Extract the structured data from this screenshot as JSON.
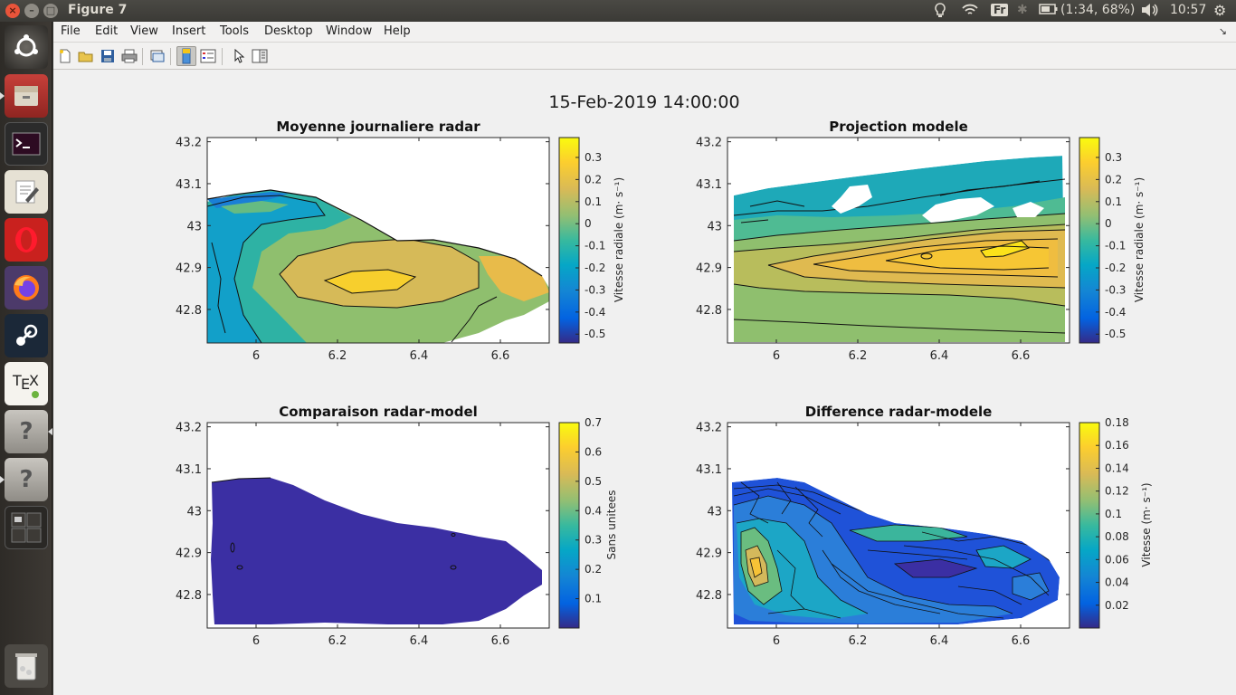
{
  "window": {
    "title": "Figure 7",
    "close": "×",
    "minimize": "–",
    "maximize": "□"
  },
  "indicators": {
    "language": "Fr",
    "battery": "(1:34, 68%)",
    "time": "10:57"
  },
  "menu": [
    "File",
    "Edit",
    "View",
    "Insert",
    "Tools",
    "Desktop",
    "Window",
    "Help"
  ],
  "figure_title": "15-Feb-2019 14:00:00",
  "chart_data": [
    {
      "type": "heatmap",
      "title": "Moyenne journaliere radar",
      "xticks": [
        "6",
        "6.2",
        "6.4",
        "6.6"
      ],
      "yticks": [
        "43.2",
        "43.1",
        "43",
        "42.9",
        "42.8"
      ],
      "xlim": [
        5.88,
        6.72
      ],
      "ylim": [
        42.72,
        43.21
      ],
      "colorbar": {
        "label": "Vitesse radiale (m· s⁻¹)",
        "ticks": [
          "0.3",
          "0.2",
          "0.1",
          "0",
          "-0.1",
          "-0.2",
          "-0.3",
          "-0.4",
          "-0.5"
        ],
        "range": [
          -0.54,
          0.39
        ]
      },
      "colormap": "parula"
    },
    {
      "type": "heatmap",
      "title": "Projection modele",
      "xticks": [
        "6",
        "6.2",
        "6.4",
        "6.6"
      ],
      "yticks": [
        "43.2",
        "43.1",
        "43",
        "42.9",
        "42.8"
      ],
      "xlim": [
        5.88,
        6.72
      ],
      "ylim": [
        42.72,
        43.21
      ],
      "colorbar": {
        "label": "Vitesse radiale (m· s⁻¹)",
        "ticks": [
          "0.3",
          "0.2",
          "0.1",
          "0",
          "-0.1",
          "-0.2",
          "-0.3",
          "-0.4",
          "-0.5"
        ],
        "range": [
          -0.54,
          0.39
        ]
      },
      "colormap": "parula"
    },
    {
      "type": "heatmap",
      "title": "Comparaison radar-model",
      "xticks": [
        "6",
        "6.2",
        "6.4",
        "6.6"
      ],
      "yticks": [
        "43.2",
        "43.1",
        "43",
        "42.9",
        "42.8"
      ],
      "xlim": [
        5.88,
        6.72
      ],
      "ylim": [
        42.72,
        43.21
      ],
      "colorbar": {
        "label": "Sans unitees",
        "ticks": [
          "0.7",
          "0.6",
          "0.5",
          "0.4",
          "0.3",
          "0.2",
          "0.1"
        ],
        "range": [
          0,
          0.7
        ]
      },
      "colormap": "parula"
    },
    {
      "type": "heatmap",
      "title": "Difference radar-modele",
      "xticks": [
        "6",
        "6.2",
        "6.4",
        "6.6"
      ],
      "yticks": [
        "43.2",
        "43.1",
        "43",
        "42.9",
        "42.8"
      ],
      "xlim": [
        5.88,
        6.72
      ],
      "ylim": [
        42.72,
        43.21
      ],
      "colorbar": {
        "label": "Vitesse (m· s⁻¹)",
        "ticks": [
          "0.18",
          "0.16",
          "0.14",
          "0.12",
          "0.1",
          "0.08",
          "0.06",
          "0.04",
          "0.02"
        ],
        "range": [
          0,
          0.18
        ]
      },
      "colormap": "parula"
    }
  ]
}
